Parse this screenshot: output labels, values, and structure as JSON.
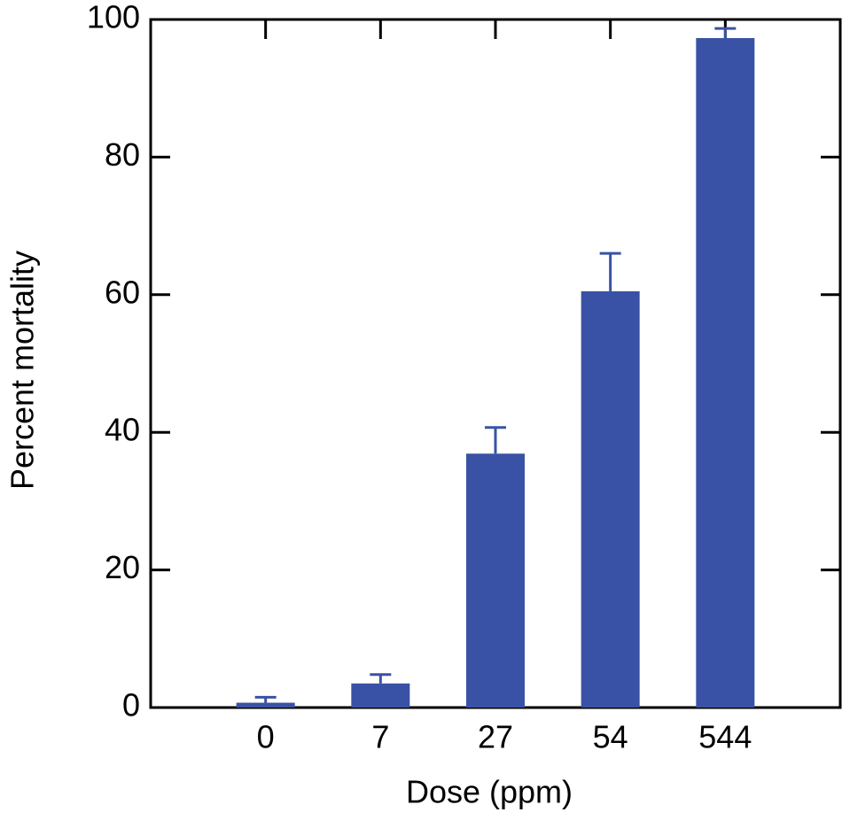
{
  "chart_data": {
    "type": "bar",
    "xlabel": "Dose (ppm)",
    "ylabel": "Percent mortality",
    "categories": [
      "0",
      "7",
      "27",
      "54",
      "544"
    ],
    "values": [
      0.7,
      3.5,
      36.9,
      60.5,
      97.3
    ],
    "errors": [
      0.8,
      1.3,
      3.8,
      5.5,
      1.4
    ],
    "color": "#3a52a5",
    "ylim": [
      0,
      100
    ],
    "yticks": [
      0,
      20,
      40,
      60,
      80,
      100
    ],
    "grid": false
  }
}
